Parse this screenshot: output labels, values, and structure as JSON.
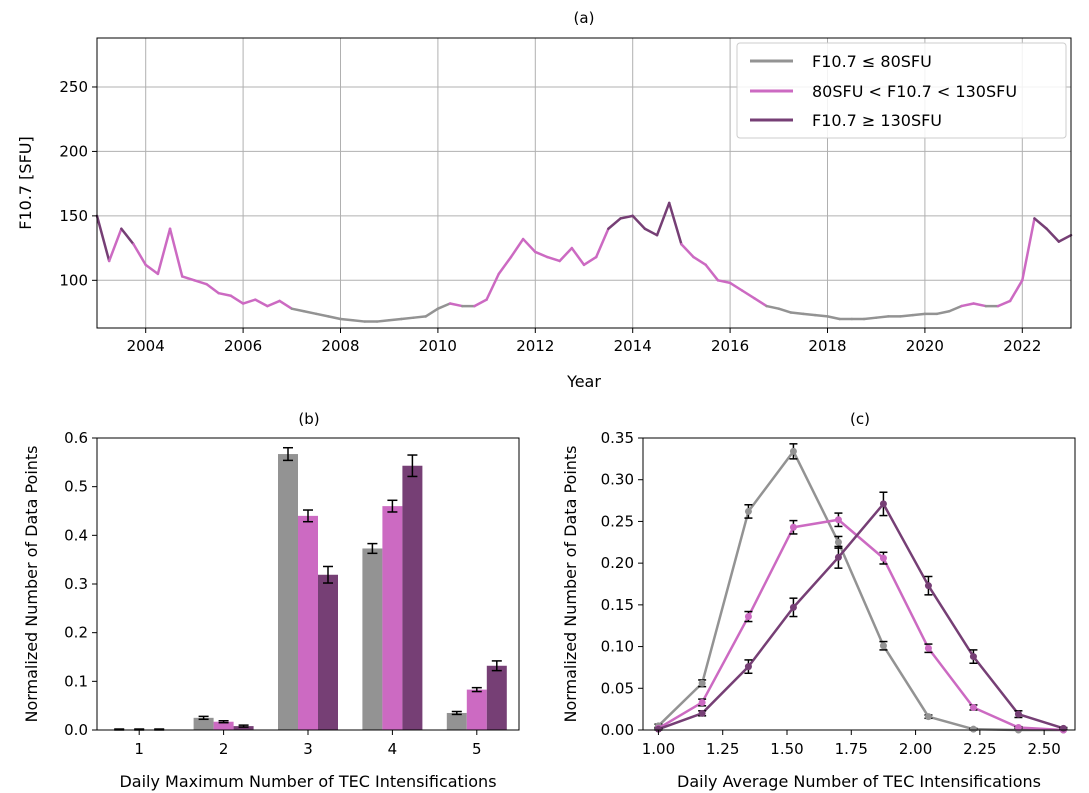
{
  "chart_data": [
    {
      "panel": "(a)",
      "type": "line",
      "title": "(a)",
      "xlabel": "Year",
      "ylabel": "F10.7 [SFU]",
      "xlim": [
        2003.0,
        2023.0
      ],
      "ylim": [
        63,
        288
      ],
      "xticks": [
        2004,
        2006,
        2008,
        2010,
        2012,
        2014,
        2016,
        2018,
        2020,
        2022
      ],
      "yticks": [
        100,
        150,
        200,
        250
      ],
      "grid": true,
      "legend_position": "top-right",
      "legend": [
        "F10.7 ≤ 80SFU",
        "80SFU < F10.7 < 130SFU",
        "F10.7 ≥ 130SFU"
      ],
      "series": [
        {
          "name": "F10.7 ≤ 80SFU",
          "color": "#939393"
        },
        {
          "name": "80SFU < F10.7 < 130SFU",
          "color": "#cc6ac2"
        },
        {
          "name": "F10.7 ≥ 130SFU",
          "color": "#763f75"
        }
      ],
      "x": [
        2003.0,
        2003.25,
        2003.5,
        2003.75,
        2004.0,
        2004.25,
        2004.5,
        2004.75,
        2005.0,
        2005.25,
        2005.5,
        2005.75,
        2006.0,
        2006.25,
        2006.5,
        2006.75,
        2007.0,
        2007.25,
        2007.5,
        2007.75,
        2008.0,
        2008.25,
        2008.5,
        2008.75,
        2009.0,
        2009.25,
        2009.5,
        2009.75,
        2010.0,
        2010.25,
        2010.5,
        2010.75,
        2011.0,
        2011.25,
        2011.5,
        2011.75,
        2012.0,
        2012.25,
        2012.5,
        2012.75,
        2013.0,
        2013.25,
        2013.5,
        2013.75,
        2014.0,
        2014.25,
        2014.5,
        2014.75,
        2015.0,
        2015.25,
        2015.5,
        2015.75,
        2016.0,
        2016.25,
        2016.5,
        2016.75,
        2017.0,
        2017.25,
        2017.5,
        2017.75,
        2018.0,
        2018.25,
        2018.5,
        2018.75,
        2019.0,
        2019.25,
        2019.5,
        2019.75,
        2020.0,
        2020.25,
        2020.5,
        2020.75,
        2021.0,
        2021.25,
        2021.5,
        2021.75,
        2022.0,
        2022.25,
        2022.5,
        2022.75,
        2023.0
      ],
      "y": [
        150,
        115,
        140,
        128,
        112,
        105,
        140,
        103,
        100,
        97,
        90,
        88,
        82,
        85,
        80,
        84,
        78,
        76,
        74,
        72,
        70,
        69,
        68,
        68,
        69,
        70,
        71,
        72,
        78,
        82,
        80,
        80,
        85,
        105,
        118,
        132,
        122,
        118,
        115,
        125,
        112,
        118,
        140,
        148,
        150,
        140,
        135,
        160,
        128,
        118,
        112,
        100,
        98,
        92,
        86,
        80,
        78,
        75,
        74,
        73,
        72,
        70,
        70,
        70,
        71,
        72,
        72,
        73,
        74,
        74,
        76,
        80,
        82,
        80,
        80,
        84,
        100,
        148,
        140,
        130,
        135
      ]
    },
    {
      "panel": "(b)",
      "type": "bar",
      "title": "(b)",
      "xlabel": "Daily Maximum Number of TEC Intensifications",
      "ylabel": "Normalized Number of Data Points",
      "categories": [
        "1",
        "2",
        "3",
        "4",
        "5"
      ],
      "ylim": [
        0,
        0.6
      ],
      "yticks": [
        "0.0",
        "0.1",
        "0.2",
        "0.3",
        "0.4",
        "0.5",
        "0.6"
      ],
      "grid": false,
      "series": [
        {
          "name": "F10.7 ≤ 80SFU",
          "color": "#939393",
          "values": [
            0.001,
            0.025,
            0.567,
            0.373,
            0.035
          ],
          "errors": [
            0.001,
            0.003,
            0.013,
            0.01,
            0.003
          ]
        },
        {
          "name": "80SFU < F10.7 < 130SFU",
          "color": "#cc6ac2",
          "values": [
            0.001,
            0.017,
            0.44,
            0.46,
            0.083
          ],
          "errors": [
            0.001,
            0.002,
            0.012,
            0.012,
            0.004
          ]
        },
        {
          "name": "F10.7 ≥ 130SFU",
          "color": "#763f75",
          "values": [
            0.001,
            0.008,
            0.319,
            0.543,
            0.132
          ],
          "errors": [
            0.001,
            0.002,
            0.017,
            0.022,
            0.01
          ]
        }
      ]
    },
    {
      "panel": "(c)",
      "type": "line",
      "title": "(c)",
      "xlabel": "Daily Average Number of TEC Intensifications",
      "ylabel": "Normalized Number of Data Points",
      "xlim": [
        0.94,
        2.62
      ],
      "ylim": [
        0,
        0.35
      ],
      "xticks": [
        "1.00",
        "1.25",
        "1.50",
        "1.75",
        "2.00",
        "2.25",
        "2.50"
      ],
      "yticks": [
        "0.00",
        "0.05",
        "0.10",
        "0.15",
        "0.20",
        "0.25",
        "0.30",
        "0.35"
      ],
      "grid": false,
      "x": [
        1.0,
        1.17,
        1.35,
        1.525,
        1.7,
        1.875,
        2.05,
        2.225,
        2.4,
        2.575
      ],
      "series": [
        {
          "name": "F10.7 ≤ 80SFU",
          "color": "#939393",
          "values": [
            0.005,
            0.056,
            0.262,
            0.334,
            0.225,
            0.101,
            0.016,
            0.001,
            0.0,
            0.0
          ],
          "errors": [
            0.002,
            0.004,
            0.008,
            0.009,
            0.007,
            0.005,
            0.002,
            0.001,
            0.0,
            0.0
          ]
        },
        {
          "name": "80SFU < F10.7 < 130SFU",
          "color": "#cc6ac2",
          "values": [
            0.002,
            0.033,
            0.136,
            0.243,
            0.252,
            0.206,
            0.098,
            0.027,
            0.003,
            0.0
          ],
          "errors": [
            0.001,
            0.004,
            0.006,
            0.008,
            0.008,
            0.007,
            0.005,
            0.003,
            0.001,
            0.0
          ]
        },
        {
          "name": "F10.7 ≥ 130SFU",
          "color": "#763f75",
          "values": [
            0.001,
            0.02,
            0.076,
            0.147,
            0.207,
            0.271,
            0.173,
            0.088,
            0.019,
            0.002
          ],
          "errors": [
            0.001,
            0.003,
            0.008,
            0.011,
            0.013,
            0.014,
            0.011,
            0.008,
            0.004,
            0.001
          ]
        }
      ]
    }
  ]
}
